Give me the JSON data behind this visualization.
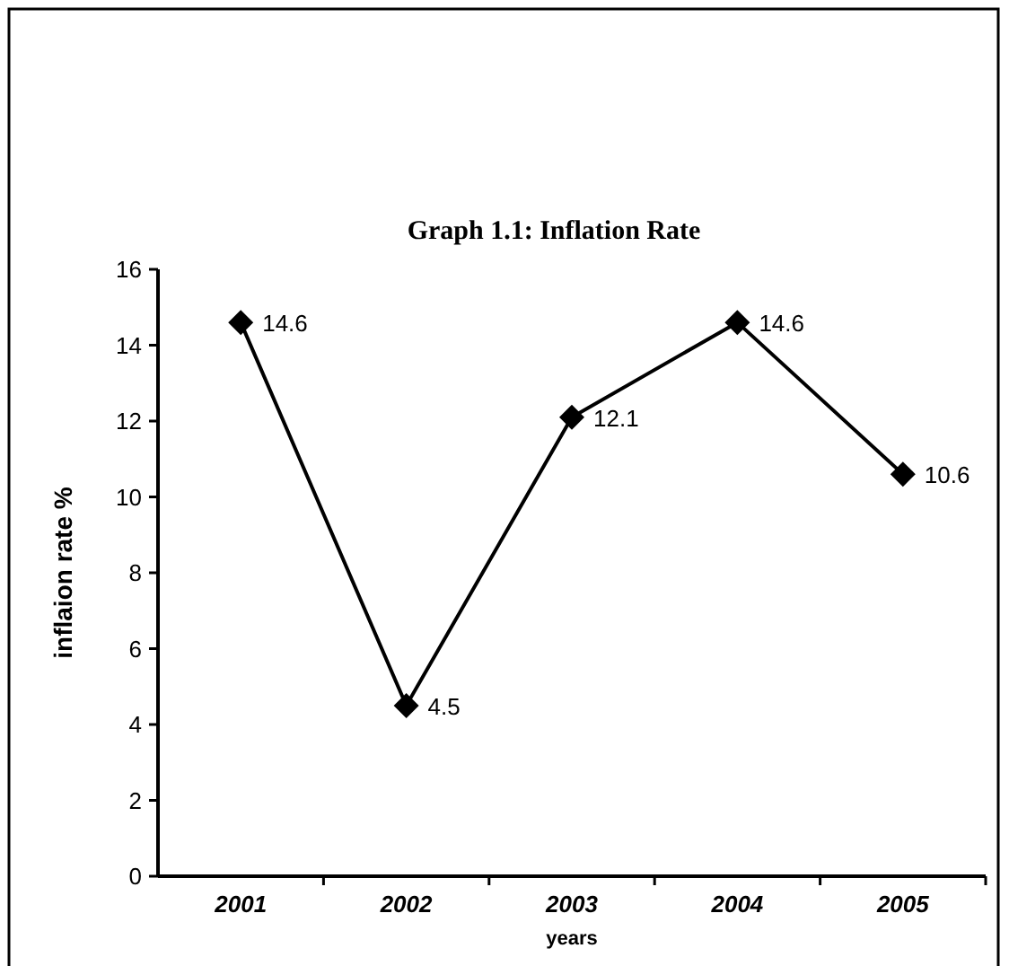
{
  "chart_data": {
    "type": "line",
    "title": "Graph 1.1: Inflation Rate",
    "xlabel": "years",
    "ylabel": "inflaion rate %",
    "categories": [
      "2001",
      "2002",
      "2003",
      "2004",
      "2005"
    ],
    "series": [
      {
        "color": "#000000",
        "values": [
          14.6,
          4.5,
          12.1,
          14.6,
          10.6
        ]
      }
    ],
    "ylim": [
      0,
      16
    ],
    "yticks": [
      0,
      2,
      4,
      6,
      8,
      10,
      12,
      14,
      16
    ],
    "data_labels": true,
    "marker": "diamond",
    "line_style": "solid",
    "grid": false
  }
}
